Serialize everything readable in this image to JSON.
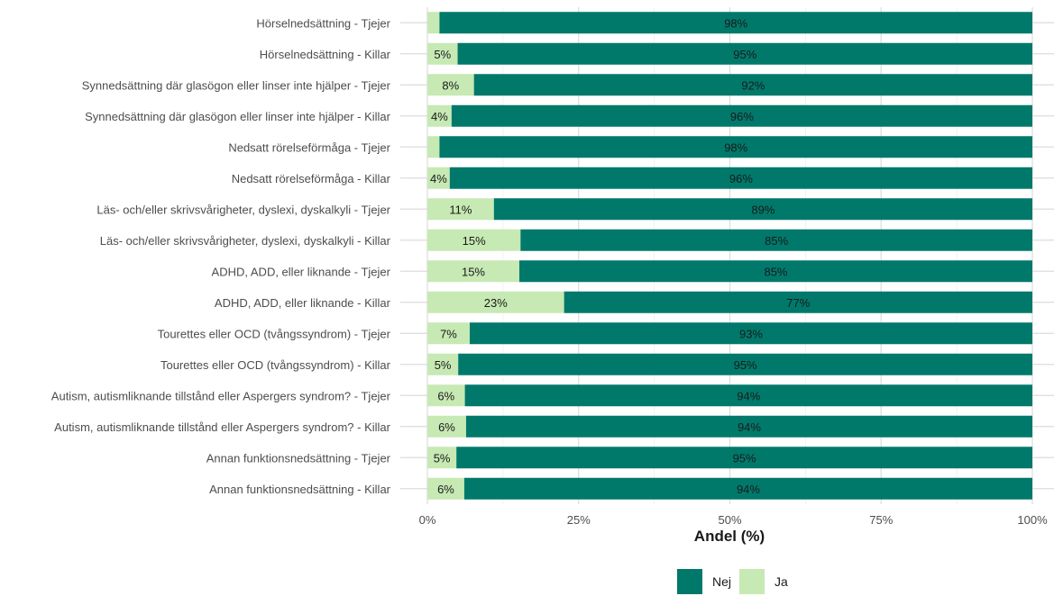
{
  "chart_data": {
    "type": "bar",
    "orientation": "horizontal",
    "stacked": true,
    "xlabel": "Andel (%)",
    "ylabel": "",
    "xlim": [
      0,
      1
    ],
    "xticks": [
      "0%",
      "25%",
      "50%",
      "75%",
      "100%"
    ],
    "grid": true,
    "legend_position": "bottom",
    "categories": [
      "Hörselnedsättning - Tjejer",
      "Hörselnedsättning - Killar",
      "Synnedsättning där glasögon eller linser inte hjälper - Tjejer",
      "Synnedsättning där glasögon eller linser inte hjälper - Killar",
      "Nedsatt rörelseförmåga - Tjejer",
      "Nedsatt rörelseförmåga - Killar",
      "Läs- och/eller skrivsvårigheter, dyslexi, dyskalkyli - Tjejer",
      "Läs- och/eller skrivsvårigheter, dyslexi, dyskalkyli - Killar",
      "ADHD, ADD, eller liknande - Tjejer",
      "ADHD, ADD, eller liknande - Killar",
      "Tourettes eller OCD (tvångssyndrom) - Tjejer",
      "Tourettes eller OCD (tvångssyndrom) - Killar",
      "Autism, autismliknande tillstånd eller Aspergers syndrom? - Tjejer",
      "Autism, autismliknande tillstånd eller Aspergers syndrom? - Killar",
      "Annan funktionsnedsättning - Tjejer",
      "Annan funktionsnedsättning - Killar"
    ],
    "series": [
      {
        "name": "Ja",
        "color": "#c7e9b4",
        "values": [
          0.02,
          0.05,
          0.077,
          0.04,
          0.02,
          0.037,
          0.11,
          0.154,
          0.152,
          0.226,
          0.07,
          0.051,
          0.062,
          0.064,
          0.048,
          0.061
        ],
        "labels": [
          "",
          "5%",
          "8%",
          "4%",
          "",
          "4%",
          "11%",
          "15%",
          "15%",
          "23%",
          "7%",
          "5%",
          "6%",
          "6%",
          "5%",
          "6%"
        ]
      },
      {
        "name": "Nej",
        "color": "#00796b",
        "values": [
          0.98,
          0.95,
          0.923,
          0.96,
          0.98,
          0.963,
          0.89,
          0.846,
          0.848,
          0.774,
          0.93,
          0.949,
          0.938,
          0.936,
          0.952,
          0.939
        ],
        "labels": [
          "98%",
          "95%",
          "92%",
          "96%",
          "98%",
          "96%",
          "89%",
          "85%",
          "85%",
          "77%",
          "93%",
          "95%",
          "94%",
          "94%",
          "95%",
          "94%"
        ]
      }
    ],
    "legend": [
      {
        "name": "Nej",
        "color": "#00796b"
      },
      {
        "name": "Ja",
        "color": "#c7e9b4"
      }
    ]
  }
}
